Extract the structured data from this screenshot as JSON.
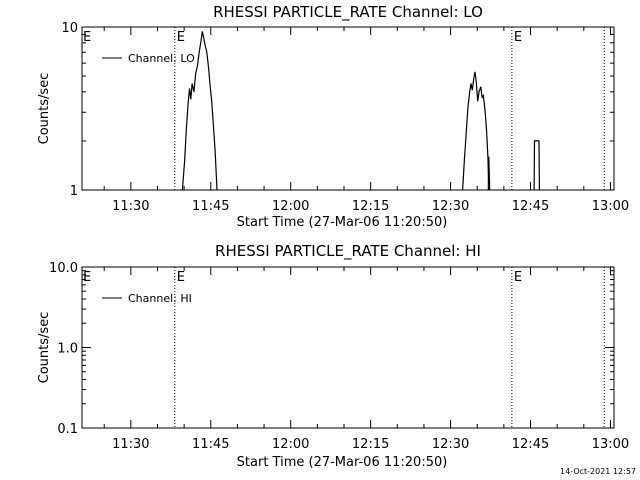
{
  "timestamp": "14-Oct-2021 12:57",
  "chart_data": [
    {
      "type": "line",
      "title": "RHESSI PARTICLE_RATE Channel: LO",
      "xlabel": "Start Time (27-Mar-06 11:20:50)",
      "ylabel": "Counts/sec",
      "y_scale": "log",
      "xlim": [
        "11:20:50",
        "13:00:40"
      ],
      "ylim": [
        1,
        10
      ],
      "x_tick_labels": [
        "11:30",
        "11:45",
        "12:00",
        "12:15",
        "12:30",
        "12:45",
        "13:00"
      ],
      "x_tick_values": [
        "11:30:00",
        "11:45:00",
        "12:00:00",
        "12:15:00",
        "12:30:00",
        "12:45:00",
        "13:00:00"
      ],
      "y_tick_labels": [
        "1",
        "10"
      ],
      "y_tick_values": [
        1,
        10
      ],
      "legend": {
        "position": "top-left",
        "entry": "Channel: LO"
      },
      "event_lines": [
        {
          "time": "11:38:15",
          "marker": "E"
        },
        {
          "time": "12:41:30",
          "marker": "E"
        },
        {
          "time": "12:58:50",
          "marker": ""
        }
      ],
      "series": [
        {
          "name": "Channel: LO",
          "points": [
            [
              "11:39:40",
              1.0
            ],
            [
              "11:40:05",
              1.5
            ],
            [
              "11:40:25",
              2.4
            ],
            [
              "11:40:45",
              3.4
            ],
            [
              "11:41:00",
              4.2
            ],
            [
              "11:41:15",
              3.6
            ],
            [
              "11:41:30",
              4.5
            ],
            [
              "11:41:50",
              4.0
            ],
            [
              "11:42:10",
              5.2
            ],
            [
              "11:42:30",
              5.8
            ],
            [
              "11:42:50",
              7.0
            ],
            [
              "11:43:10",
              8.2
            ],
            [
              "11:43:25",
              9.4
            ],
            [
              "11:43:40",
              8.6
            ],
            [
              "11:43:55",
              7.8
            ],
            [
              "11:44:15",
              7.0
            ],
            [
              "11:44:35",
              5.6
            ],
            [
              "11:44:50",
              4.5
            ],
            [
              "11:45:10",
              3.5
            ],
            [
              "11:45:30",
              2.5
            ],
            [
              "11:45:50",
              1.7
            ],
            [
              "11:46:10",
              1.0
            ],
            null,
            [
              "12:32:15",
              1.0
            ],
            [
              "12:32:35",
              1.5
            ],
            [
              "12:32:55",
              2.2
            ],
            [
              "12:33:15",
              3.2
            ],
            [
              "12:33:35",
              4.0
            ],
            [
              "12:33:50",
              4.5
            ],
            [
              "12:34:05",
              4.1
            ],
            [
              "12:34:20",
              4.8
            ],
            [
              "12:34:35",
              5.3
            ],
            [
              "12:34:50",
              4.6
            ],
            [
              "12:35:05",
              3.5
            ],
            [
              "12:35:20",
              4.0
            ],
            [
              "12:35:40",
              4.3
            ],
            [
              "12:35:55",
              3.7
            ],
            [
              "12:36:10",
              3.8
            ],
            [
              "12:36:30",
              3.0
            ],
            [
              "12:36:45",
              2.3
            ],
            [
              "12:37:00",
              1.6
            ],
            [
              "12:37:10",
              1.0
            ],
            null,
            [
              "12:37:05",
              1.0
            ],
            [
              "12:37:10",
              1.6
            ],
            [
              "12:37:20",
              1.0
            ],
            null,
            [
              "12:45:40",
              1.0
            ],
            [
              "12:45:45",
              2.0
            ],
            [
              "12:46:35",
              2.0
            ],
            [
              "12:46:40",
              1.0
            ]
          ]
        }
      ]
    },
    {
      "type": "line",
      "title": "RHESSI PARTICLE_RATE Channel: HI",
      "xlabel": "Start Time (27-Mar-06 11:20:50)",
      "ylabel": "Counts/sec",
      "y_scale": "log",
      "xlim": [
        "11:20:50",
        "13:00:40"
      ],
      "ylim": [
        0.1,
        10
      ],
      "x_tick_labels": [
        "11:30",
        "11:45",
        "12:00",
        "12:15",
        "12:30",
        "12:45",
        "13:00"
      ],
      "x_tick_values": [
        "11:30:00",
        "11:45:00",
        "12:00:00",
        "12:15:00",
        "12:30:00",
        "12:45:00",
        "13:00:00"
      ],
      "y_tick_labels": [
        "0.1",
        "1.0",
        "10.0"
      ],
      "y_tick_values": [
        0.1,
        1,
        10
      ],
      "legend": {
        "position": "top-left",
        "entry": "Channel: HI"
      },
      "event_lines": [
        {
          "time": "11:38:15",
          "marker": "E"
        },
        {
          "time": "12:41:30",
          "marker": "E"
        },
        {
          "time": "12:58:50",
          "marker": ""
        }
      ],
      "series": [
        {
          "name": "Channel: HI",
          "points": []
        }
      ]
    }
  ]
}
